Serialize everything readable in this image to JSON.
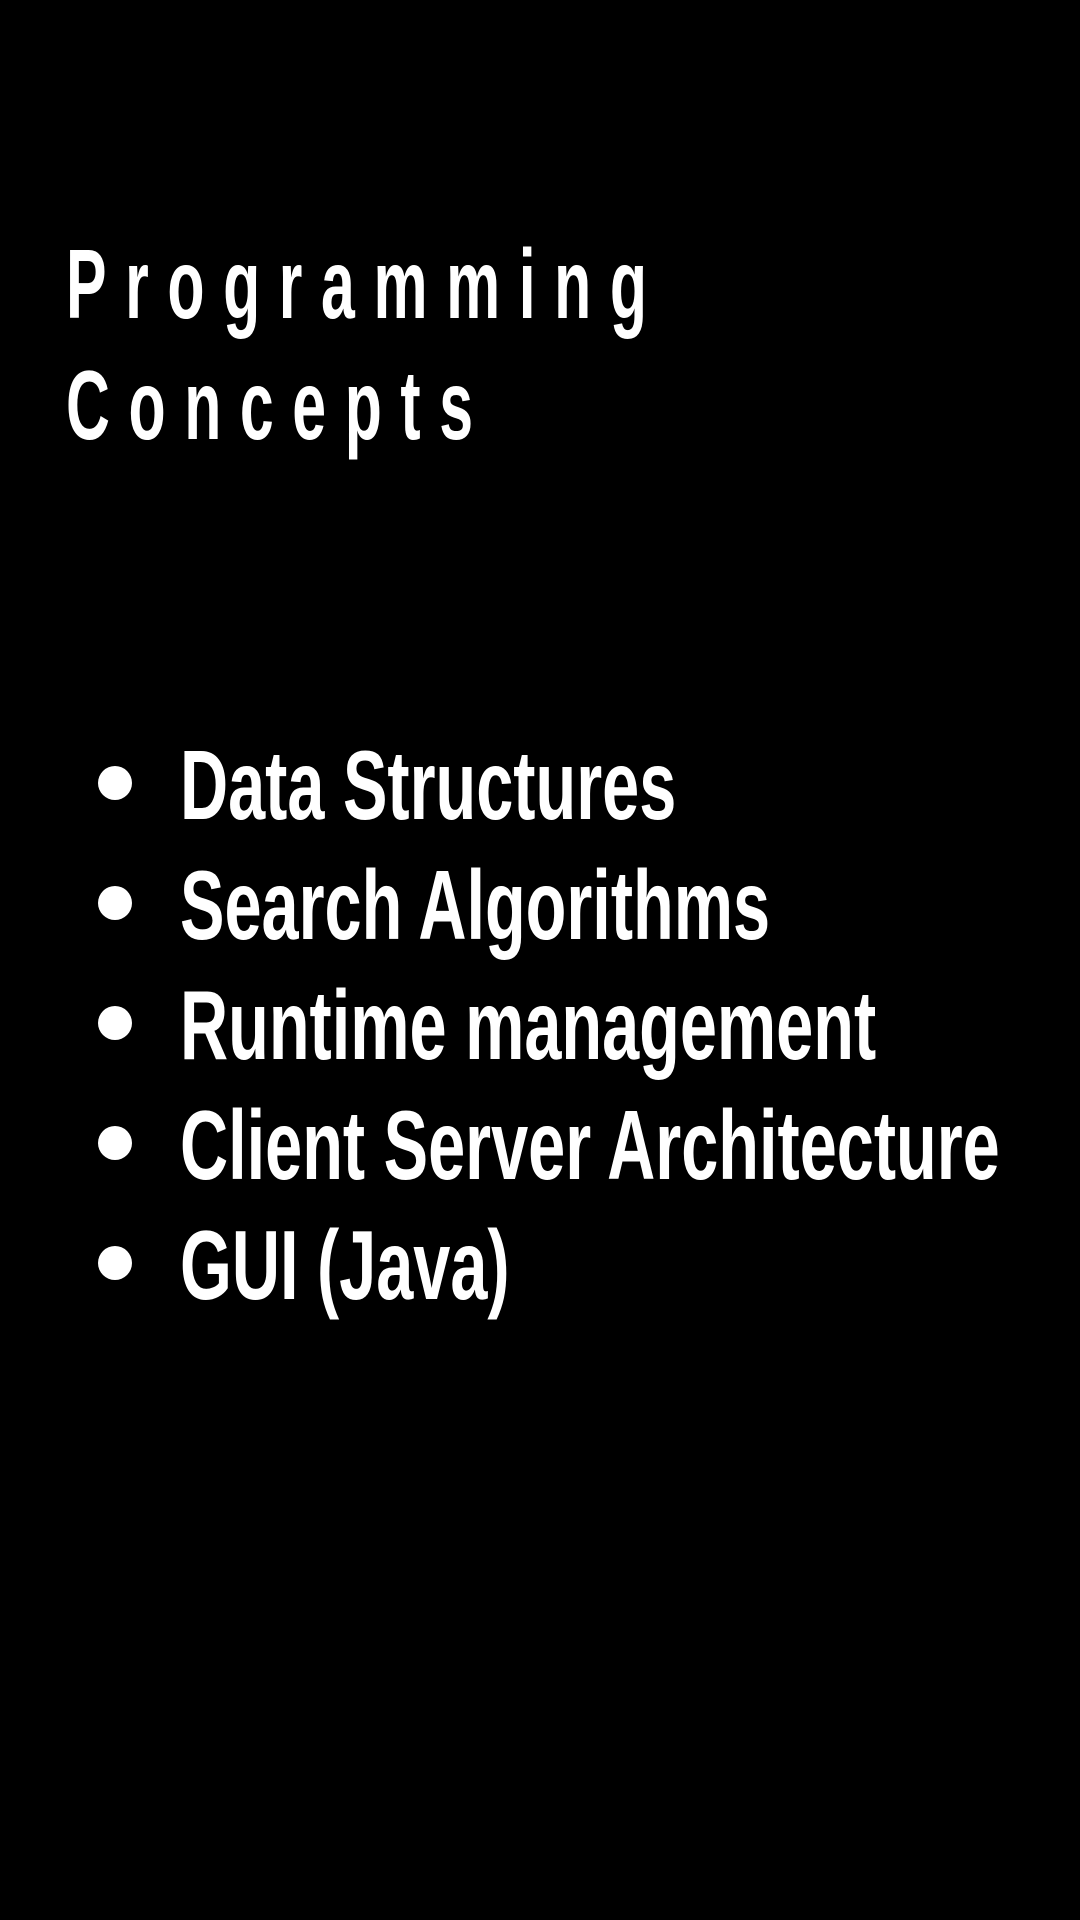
{
  "slide": {
    "title_line_1": "Programming",
    "title_line_2": "Concepts",
    "bullets": [
      "Data Structures",
      "Search Algorithms",
      "Runtime management",
      "Client Server Architecture",
      "GUI (Java)"
    ]
  },
  "colors": {
    "background": "#000000",
    "text": "#ffffff"
  }
}
